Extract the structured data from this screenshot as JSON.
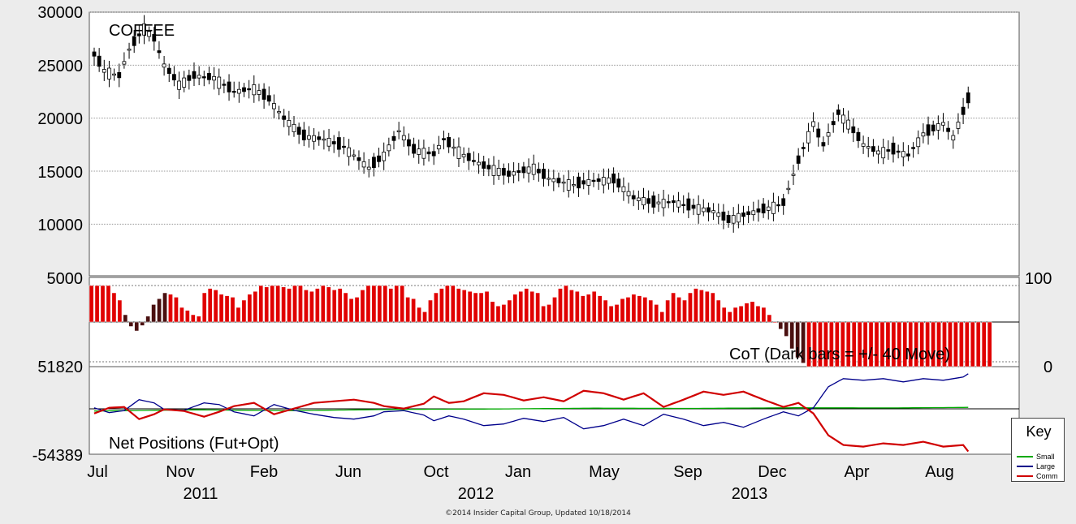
{
  "chart_data": [
    {
      "type": "candlestick",
      "title": "COFFEE",
      "ylim": [
        0,
        30000
      ],
      "yticks": [
        30000,
        25000,
        20000,
        15000,
        10000,
        5000
      ],
      "weeks": 160,
      "price_keyframes": [
        [
          0,
          26000
        ],
        [
          2,
          24500
        ],
        [
          5,
          24000
        ],
        [
          7,
          26500
        ],
        [
          10,
          28500
        ],
        [
          12,
          27500
        ],
        [
          14,
          25000
        ],
        [
          17,
          23200
        ],
        [
          20,
          24000
        ],
        [
          24,
          23800
        ],
        [
          28,
          22500
        ],
        [
          32,
          22800
        ],
        [
          35,
          21800
        ],
        [
          38,
          20000
        ],
        [
          42,
          18300
        ],
        [
          46,
          18000
        ],
        [
          50,
          17300
        ],
        [
          55,
          15300
        ],
        [
          58,
          16500
        ],
        [
          61,
          18800
        ],
        [
          64,
          17000
        ],
        [
          68,
          16600
        ],
        [
          70,
          18000
        ],
        [
          74,
          16500
        ],
        [
          78,
          15500
        ],
        [
          83,
          14700
        ],
        [
          88,
          15300
        ],
        [
          91,
          14300
        ],
        [
          96,
          13700
        ],
        [
          100,
          14100
        ],
        [
          104,
          14200
        ],
        [
          108,
          12500
        ],
        [
          112,
          12000
        ],
        [
          116,
          12100
        ],
        [
          120,
          11600
        ],
        [
          124,
          11200
        ],
        [
          127,
          10400
        ],
        [
          131,
          11000
        ],
        [
          135,
          11500
        ],
        [
          138,
          12000
        ],
        [
          141,
          16000
        ],
        [
          144,
          19500
        ],
        [
          146,
          17500
        ],
        [
          149,
          20500
        ],
        [
          151,
          19500
        ],
        [
          154,
          17500
        ],
        [
          157,
          16800
        ],
        [
          160,
          17000
        ]
      ],
      "price_keyframes_tail": [
        [
          163,
          16500
        ],
        [
          166,
          18500
        ],
        [
          170,
          19500
        ],
        [
          172,
          18200
        ],
        [
          175,
          21800
        ]
      ]
    },
    {
      "type": "bar",
      "title": "CoT (Dark bars = +/- 40 Move)",
      "ylim": [
        0,
        100
      ],
      "yticks_right": [
        100,
        0
      ],
      "values": [
        100,
        100,
        100,
        100,
        90,
        80,
        60,
        45,
        40,
        46,
        58,
        74,
        82,
        90,
        88,
        84,
        70,
        66,
        60,
        58,
        90,
        96,
        94,
        88,
        86,
        84,
        70,
        80,
        88,
        92,
        100,
        98,
        100,
        100,
        98,
        96,
        100,
        100,
        94,
        92,
        96,
        100,
        98,
        94,
        96,
        90,
        82,
        84,
        94,
        100,
        100,
        100,
        100,
        96,
        100,
        100,
        84,
        82,
        70,
        64,
        80,
        90,
        96,
        100,
        100,
        96,
        94,
        92,
        90,
        90,
        92,
        78,
        72,
        74,
        80,
        88,
        92,
        96,
        92,
        90,
        72,
        74,
        84,
        96,
        100,
        94,
        92,
        86,
        88,
        92,
        86,
        80,
        72,
        74,
        82,
        84,
        88,
        86,
        84,
        80,
        74,
        64,
        80,
        90,
        84,
        80,
        90,
        96,
        94,
        92,
        90,
        80,
        70,
        64,
        70,
        72,
        76,
        78,
        72,
        70,
        60,
        50,
        42,
        34,
        20,
        10,
        4,
        0,
        0,
        0,
        0,
        0,
        0,
        0,
        0,
        0,
        0,
        0,
        0,
        0,
        0,
        0,
        0,
        0,
        0,
        0,
        0,
        0,
        0,
        0,
        0,
        0,
        0,
        0,
        0,
        0,
        0,
        0,
        0,
        0
      ],
      "dark_flags_indices": [
        6,
        7,
        8,
        9,
        10,
        11,
        12,
        13,
        122,
        123,
        124,
        125,
        126
      ]
    },
    {
      "type": "line",
      "title": "Net Positions (Fut+Opt)",
      "ylim": [
        -54389,
        51820
      ],
      "yticks": [
        51820,
        -54389
      ],
      "series": [
        {
          "name": "Small",
          "color": "#00aa00",
          "keyframes": [
            [
              0,
              -2000
            ],
            [
              20,
              -500
            ],
            [
              40,
              -1500
            ],
            [
              60,
              0
            ],
            [
              80,
              500
            ],
            [
              100,
              1500
            ],
            [
              120,
              1200
            ],
            [
              140,
              2000
            ],
            [
              160,
              1800
            ],
            [
              175,
              2500
            ]
          ]
        },
        {
          "name": "Large",
          "color": "#00008b",
          "keyframes": [
            [
              0,
              2000
            ],
            [
              3,
              -4000
            ],
            [
              6,
              -1500
            ],
            [
              9,
              12000
            ],
            [
              12,
              8000
            ],
            [
              14,
              0
            ],
            [
              18,
              -1000
            ],
            [
              22,
              8000
            ],
            [
              25,
              6000
            ],
            [
              28,
              -3000
            ],
            [
              32,
              -8000
            ],
            [
              36,
              6000
            ],
            [
              40,
              -1000
            ],
            [
              44,
              -6000
            ],
            [
              48,
              -10000
            ],
            [
              52,
              -12000
            ],
            [
              56,
              -8000
            ],
            [
              58,
              -3000
            ],
            [
              62,
              -1500
            ],
            [
              66,
              -7000
            ],
            [
              68,
              -14000
            ],
            [
              71,
              -8000
            ],
            [
              74,
              -12000
            ],
            [
              78,
              -20000
            ],
            [
              82,
              -18000
            ],
            [
              86,
              -11000
            ],
            [
              90,
              -15000
            ],
            [
              94,
              -10000
            ],
            [
              98,
              -24000
            ],
            [
              102,
              -20000
            ],
            [
              106,
              -12000
            ],
            [
              110,
              -20000
            ],
            [
              114,
              -6000
            ],
            [
              118,
              -12000
            ],
            [
              122,
              -20000
            ],
            [
              126,
              -16000
            ],
            [
              130,
              -22000
            ],
            [
              134,
              -12000
            ],
            [
              138,
              -3000
            ],
            [
              141,
              -8000
            ],
            [
              144,
              2000
            ],
            [
              147,
              28000
            ],
            [
              150,
              38000
            ],
            [
              154,
              36000
            ],
            [
              158,
              38000
            ],
            [
              162,
              34000
            ],
            [
              166,
              38000
            ],
            [
              170,
              36000
            ],
            [
              174,
              40000
            ],
            [
              175,
              44000
            ]
          ]
        },
        {
          "name": "Comm",
          "color": "#d00000",
          "keyframes": [
            [
              0,
              -5000
            ],
            [
              3,
              2000
            ],
            [
              6,
              3000
            ],
            [
              9,
              -12000
            ],
            [
              12,
              -6000
            ],
            [
              14,
              0
            ],
            [
              18,
              -2000
            ],
            [
              22,
              -9000
            ],
            [
              25,
              -3000
            ],
            [
              28,
              4000
            ],
            [
              32,
              8000
            ],
            [
              36,
              -6000
            ],
            [
              40,
              1000
            ],
            [
              44,
              8000
            ],
            [
              48,
              10000
            ],
            [
              52,
              12000
            ],
            [
              56,
              8000
            ],
            [
              58,
              4000
            ],
            [
              62,
              1000
            ],
            [
              66,
              7000
            ],
            [
              68,
              16000
            ],
            [
              71,
              8000
            ],
            [
              74,
              10000
            ],
            [
              78,
              20000
            ],
            [
              82,
              18000
            ],
            [
              86,
              11000
            ],
            [
              90,
              15000
            ],
            [
              94,
              10000
            ],
            [
              98,
              23000
            ],
            [
              102,
              20000
            ],
            [
              106,
              12000
            ],
            [
              110,
              20000
            ],
            [
              114,
              3000
            ],
            [
              118,
              12000
            ],
            [
              122,
              22000
            ],
            [
              126,
              18000
            ],
            [
              130,
              22000
            ],
            [
              134,
              12000
            ],
            [
              138,
              3000
            ],
            [
              141,
              8000
            ],
            [
              144,
              -5000
            ],
            [
              147,
              -32000
            ],
            [
              150,
              -44000
            ],
            [
              154,
              -46000
            ],
            [
              158,
              -42000
            ],
            [
              162,
              -44000
            ],
            [
              166,
              -40000
            ],
            [
              170,
              -46000
            ],
            [
              174,
              -44000
            ],
            [
              175,
              -52000
            ]
          ]
        }
      ],
      "legend": {
        "title": "Key",
        "placement": "bottom-right"
      }
    }
  ],
  "x_axis": {
    "months": [
      "Jul",
      "Nov",
      "Feb",
      "Jun",
      "Oct",
      "Jan",
      "May",
      "Sep",
      "Dec",
      "Apr",
      "Aug"
    ],
    "years": [
      "2011",
      "2012",
      "2013"
    ]
  },
  "key": {
    "title": "Key",
    "items": [
      {
        "label": "Small",
        "color": "#00aa00"
      },
      {
        "label": "Large",
        "color": "#00008b"
      },
      {
        "label": "Comm",
        "color": "#d00000"
      }
    ]
  },
  "footer": "©2014 Insider Capital Group, Updated 10/18/2014"
}
